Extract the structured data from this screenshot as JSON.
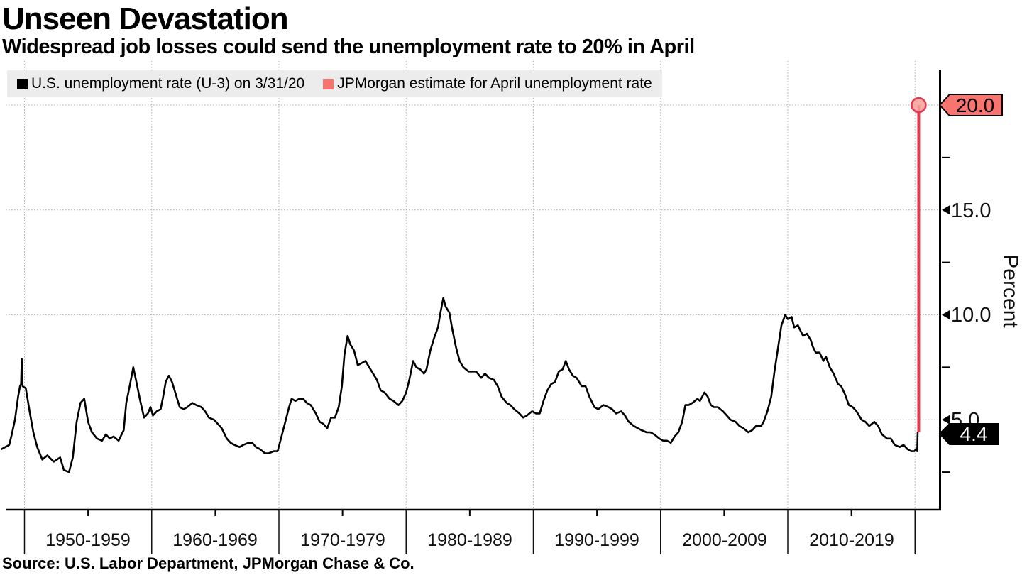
{
  "header": {
    "title": "Unseen Devastation",
    "subtitle": "Widespread job losses could send the unemployment rate to 20% in April"
  },
  "source_line": "Source: U.S. Labor Department, JPMorgan Chase & Co.",
  "legend": [
    {
      "label": "U.S. unemployment rate (U-3) on 3/31/20",
      "color": "#000000"
    },
    {
      "label": "JPMorgan estimate for April unemployment rate",
      "color": "#f8746f"
    }
  ],
  "y_axis": {
    "unit_label": "Percent",
    "tick_labels": [
      "15.0",
      "10.0",
      "5.0"
    ]
  },
  "badges": {
    "estimate": {
      "label": "20.0",
      "value": 20.0,
      "fill": "#f8746f",
      "text_color": "#000000"
    },
    "latest": {
      "label": "4.4",
      "value": 4.4,
      "fill": "#000000",
      "text_color": "#ffffff"
    }
  },
  "x_axis": {
    "decade_labels": [
      "1950-1959",
      "1960-1969",
      "1970-1979",
      "1980-1989",
      "1990-1999",
      "2000-2009",
      "2010-2019"
    ]
  },
  "colors": {
    "line_black": "#000000",
    "estimate_line_red": "#e9384f",
    "estimate_fill_salmon": "#f8746f",
    "legend_background": "#ececec",
    "gridline_gray": "#ababab"
  },
  "chart_data": {
    "type": "line",
    "title": "Unseen Devastation",
    "subtitle": "Widespread job losses could send the unemployment rate to 20% in April",
    "ylabel": "Percent",
    "ylim": [
      0.7,
      21.7
    ],
    "xlim": [
      1948.2,
      2021.9
    ],
    "grid": "dotted",
    "y_major_gridlines": [
      20,
      15,
      10,
      5
    ],
    "y_minor_ticks": [
      17.5,
      12.5,
      7.5,
      2.5
    ],
    "x_gridlines": [
      1950,
      1960,
      1970,
      1980,
      1990,
      2000,
      2010,
      2020
    ],
    "series": [
      {
        "name": "U.S. unemployment rate (U-3) on 3/31/20",
        "color": "#000000",
        "points": [
          [
            1948.2,
            3.6
          ],
          [
            1948.5,
            3.7
          ],
          [
            1948.8,
            3.8
          ],
          [
            1949.0,
            4.3
          ],
          [
            1949.25,
            5.0
          ],
          [
            1949.5,
            6.1
          ],
          [
            1949.65,
            6.6
          ],
          [
            1949.73,
            6.7
          ],
          [
            1949.78,
            7.9
          ],
          [
            1949.85,
            6.6
          ],
          [
            1950.1,
            6.5
          ],
          [
            1950.4,
            5.4
          ],
          [
            1950.7,
            4.4
          ],
          [
            1951.0,
            3.7
          ],
          [
            1951.4,
            3.1
          ],
          [
            1951.8,
            3.3
          ],
          [
            1952.3,
            3.0
          ],
          [
            1952.8,
            3.2
          ],
          [
            1953.1,
            2.6
          ],
          [
            1953.5,
            2.5
          ],
          [
            1953.8,
            3.2
          ],
          [
            1954.1,
            4.9
          ],
          [
            1954.4,
            5.8
          ],
          [
            1954.7,
            6.0
          ],
          [
            1955.0,
            4.9
          ],
          [
            1955.3,
            4.4
          ],
          [
            1955.7,
            4.1
          ],
          [
            1956.1,
            4.0
          ],
          [
            1956.4,
            4.3
          ],
          [
            1956.7,
            4.1
          ],
          [
            1957.0,
            4.2
          ],
          [
            1957.4,
            4.0
          ],
          [
            1957.8,
            4.5
          ],
          [
            1958.0,
            5.8
          ],
          [
            1958.3,
            6.7
          ],
          [
            1958.55,
            7.5
          ],
          [
            1958.8,
            6.8
          ],
          [
            1959.1,
            5.9
          ],
          [
            1959.4,
            5.1
          ],
          [
            1959.7,
            5.3
          ],
          [
            1959.9,
            5.6
          ],
          [
            1960.1,
            5.2
          ],
          [
            1960.4,
            5.4
          ],
          [
            1960.7,
            5.5
          ],
          [
            1960.9,
            6.1
          ],
          [
            1961.1,
            6.8
          ],
          [
            1961.35,
            7.1
          ],
          [
            1961.6,
            6.8
          ],
          [
            1961.9,
            6.2
          ],
          [
            1962.2,
            5.6
          ],
          [
            1962.5,
            5.5
          ],
          [
            1962.8,
            5.6
          ],
          [
            1963.2,
            5.8
          ],
          [
            1963.5,
            5.7
          ],
          [
            1963.9,
            5.6
          ],
          [
            1964.2,
            5.4
          ],
          [
            1964.5,
            5.1
          ],
          [
            1964.9,
            5.0
          ],
          [
            1965.2,
            4.8
          ],
          [
            1965.5,
            4.6
          ],
          [
            1965.9,
            4.1
          ],
          [
            1966.2,
            3.9
          ],
          [
            1966.5,
            3.8
          ],
          [
            1966.9,
            3.7
          ],
          [
            1967.2,
            3.8
          ],
          [
            1967.6,
            3.9
          ],
          [
            1967.9,
            3.9
          ],
          [
            1968.2,
            3.7
          ],
          [
            1968.5,
            3.6
          ],
          [
            1968.9,
            3.4
          ],
          [
            1969.2,
            3.4
          ],
          [
            1969.6,
            3.5
          ],
          [
            1969.9,
            3.5
          ],
          [
            1970.2,
            4.2
          ],
          [
            1970.5,
            4.9
          ],
          [
            1970.8,
            5.6
          ],
          [
            1971.0,
            6.0
          ],
          [
            1971.3,
            5.9
          ],
          [
            1971.6,
            6.0
          ],
          [
            1971.9,
            6.0
          ],
          [
            1972.2,
            5.8
          ],
          [
            1972.5,
            5.7
          ],
          [
            1972.9,
            5.3
          ],
          [
            1973.2,
            4.9
          ],
          [
            1973.5,
            4.8
          ],
          [
            1973.8,
            4.6
          ],
          [
            1974.1,
            5.1
          ],
          [
            1974.4,
            5.1
          ],
          [
            1974.7,
            5.6
          ],
          [
            1974.95,
            6.6
          ],
          [
            1975.15,
            8.1
          ],
          [
            1975.4,
            9.0
          ],
          [
            1975.6,
            8.6
          ],
          [
            1975.9,
            8.3
          ],
          [
            1976.2,
            7.6
          ],
          [
            1976.5,
            7.7
          ],
          [
            1976.8,
            7.8
          ],
          [
            1977.1,
            7.5
          ],
          [
            1977.4,
            7.2
          ],
          [
            1977.7,
            6.9
          ],
          [
            1978.0,
            6.4
          ],
          [
            1978.3,
            6.3
          ],
          [
            1978.7,
            6.0
          ],
          [
            1979.0,
            5.9
          ],
          [
            1979.4,
            5.7
          ],
          [
            1979.7,
            5.9
          ],
          [
            1980.0,
            6.3
          ],
          [
            1980.25,
            6.9
          ],
          [
            1980.55,
            7.8
          ],
          [
            1980.8,
            7.5
          ],
          [
            1981.1,
            7.4
          ],
          [
            1981.4,
            7.2
          ],
          [
            1981.6,
            7.4
          ],
          [
            1981.9,
            8.3
          ],
          [
            1982.2,
            8.9
          ],
          [
            1982.5,
            9.4
          ],
          [
            1982.7,
            10.1
          ],
          [
            1982.92,
            10.8
          ],
          [
            1983.1,
            10.4
          ],
          [
            1983.4,
            10.1
          ],
          [
            1983.6,
            9.4
          ],
          [
            1983.9,
            8.5
          ],
          [
            1984.2,
            7.8
          ],
          [
            1984.5,
            7.5
          ],
          [
            1984.9,
            7.3
          ],
          [
            1985.2,
            7.3
          ],
          [
            1985.5,
            7.3
          ],
          [
            1985.9,
            7.0
          ],
          [
            1986.2,
            7.2
          ],
          [
            1986.5,
            7.0
          ],
          [
            1986.9,
            6.9
          ],
          [
            1987.2,
            6.6
          ],
          [
            1987.5,
            6.1
          ],
          [
            1987.9,
            5.8
          ],
          [
            1988.2,
            5.7
          ],
          [
            1988.5,
            5.5
          ],
          [
            1988.9,
            5.3
          ],
          [
            1989.2,
            5.1
          ],
          [
            1989.5,
            5.2
          ],
          [
            1989.9,
            5.4
          ],
          [
            1990.2,
            5.3
          ],
          [
            1990.5,
            5.3
          ],
          [
            1990.8,
            5.9
          ],
          [
            1991.1,
            6.4
          ],
          [
            1991.4,
            6.7
          ],
          [
            1991.7,
            6.8
          ],
          [
            1992.0,
            7.3
          ],
          [
            1992.3,
            7.4
          ],
          [
            1992.55,
            7.8
          ],
          [
            1992.8,
            7.4
          ],
          [
            1993.1,
            7.1
          ],
          [
            1993.4,
            7.0
          ],
          [
            1993.8,
            6.6
          ],
          [
            1994.1,
            6.6
          ],
          [
            1994.4,
            6.1
          ],
          [
            1994.8,
            5.6
          ],
          [
            1995.1,
            5.5
          ],
          [
            1995.5,
            5.7
          ],
          [
            1995.9,
            5.6
          ],
          [
            1996.2,
            5.5
          ],
          [
            1996.5,
            5.3
          ],
          [
            1996.9,
            5.4
          ],
          [
            1997.2,
            5.2
          ],
          [
            1997.5,
            4.9
          ],
          [
            1997.9,
            4.7
          ],
          [
            1998.2,
            4.6
          ],
          [
            1998.5,
            4.5
          ],
          [
            1998.9,
            4.4
          ],
          [
            1999.2,
            4.4
          ],
          [
            1999.5,
            4.3
          ],
          [
            1999.9,
            4.1
          ],
          [
            2000.2,
            4.0
          ],
          [
            2000.5,
            4.0
          ],
          [
            2000.8,
            3.9
          ],
          [
            2001.1,
            4.2
          ],
          [
            2001.4,
            4.4
          ],
          [
            2001.7,
            4.9
          ],
          [
            2001.95,
            5.7
          ],
          [
            2002.2,
            5.7
          ],
          [
            2002.5,
            5.8
          ],
          [
            2002.9,
            6.0
          ],
          [
            2003.1,
            5.9
          ],
          [
            2003.45,
            6.3
          ],
          [
            2003.7,
            6.1
          ],
          [
            2003.95,
            5.7
          ],
          [
            2004.2,
            5.6
          ],
          [
            2004.5,
            5.6
          ],
          [
            2004.9,
            5.4
          ],
          [
            2005.2,
            5.2
          ],
          [
            2005.5,
            5.0
          ],
          [
            2005.9,
            4.9
          ],
          [
            2006.2,
            4.7
          ],
          [
            2006.5,
            4.6
          ],
          [
            2006.9,
            4.4
          ],
          [
            2007.2,
            4.5
          ],
          [
            2007.5,
            4.7
          ],
          [
            2007.9,
            4.7
          ],
          [
            2008.1,
            4.9
          ],
          [
            2008.4,
            5.4
          ],
          [
            2008.7,
            6.1
          ],
          [
            2008.95,
            7.3
          ],
          [
            2009.2,
            8.3
          ],
          [
            2009.5,
            9.5
          ],
          [
            2009.8,
            10.0
          ],
          [
            2010.0,
            9.8
          ],
          [
            2010.3,
            9.9
          ],
          [
            2010.5,
            9.4
          ],
          [
            2010.8,
            9.5
          ],
          [
            2010.95,
            9.3
          ],
          [
            2011.2,
            9.0
          ],
          [
            2011.5,
            9.1
          ],
          [
            2011.8,
            8.8
          ],
          [
            2011.95,
            8.5
          ],
          [
            2012.2,
            8.2
          ],
          [
            2012.5,
            8.2
          ],
          [
            2012.8,
            7.8
          ],
          [
            2013.0,
            8.0
          ],
          [
            2013.3,
            7.5
          ],
          [
            2013.6,
            7.2
          ],
          [
            2013.95,
            6.7
          ],
          [
            2014.2,
            6.6
          ],
          [
            2014.5,
            6.2
          ],
          [
            2014.8,
            5.7
          ],
          [
            2015.1,
            5.6
          ],
          [
            2015.4,
            5.4
          ],
          [
            2015.8,
            5.0
          ],
          [
            2016.1,
            4.9
          ],
          [
            2016.4,
            4.7
          ],
          [
            2016.8,
            4.9
          ],
          [
            2017.1,
            4.7
          ],
          [
            2017.4,
            4.3
          ],
          [
            2017.8,
            4.1
          ],
          [
            2018.1,
            4.1
          ],
          [
            2018.4,
            3.8
          ],
          [
            2018.8,
            3.7
          ],
          [
            2019.1,
            3.8
          ],
          [
            2019.4,
            3.6
          ],
          [
            2019.7,
            3.5
          ],
          [
            2019.95,
            3.5
          ],
          [
            2020.08,
            3.6
          ],
          [
            2020.17,
            3.5
          ],
          [
            2020.21,
            4.4
          ]
        ]
      },
      {
        "name": "JPMorgan estimate for April unemployment rate",
        "color": "#e9384f",
        "marker": "circle-top",
        "points": [
          [
            2020.29,
            4.4
          ],
          [
            2020.29,
            20.0
          ]
        ]
      }
    ]
  }
}
